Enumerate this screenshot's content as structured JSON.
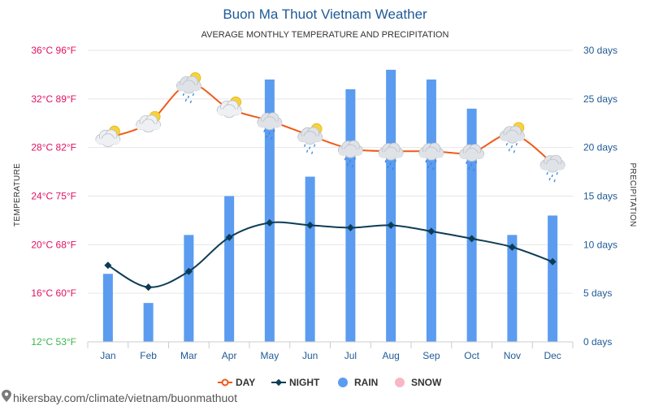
{
  "chart_data": {
    "type": "line+bar",
    "title": "Buon Ma Thuot Vietnam Weather",
    "subtitle": "AVERAGE MONTHLY TEMPERATURE AND PRECIPITATION",
    "categories": [
      "Jan",
      "Feb",
      "Mar",
      "Apr",
      "May",
      "Jun",
      "Jul",
      "Aug",
      "Sep",
      "Oct",
      "Nov",
      "Dec"
    ],
    "series": [
      {
        "name": "DAY",
        "type": "line",
        "axis": "left",
        "color": "#f05a1a",
        "values": [
          28.8,
          30.0,
          33.2,
          31.2,
          30.2,
          29.0,
          27.9,
          27.7,
          27.7,
          27.6,
          29.1,
          26.7
        ]
      },
      {
        "name": "NIGHT",
        "type": "line",
        "axis": "left",
        "color": "#0d3d56",
        "values": [
          18.3,
          16.5,
          17.8,
          20.6,
          21.8,
          21.6,
          21.4,
          21.6,
          21.1,
          20.5,
          19.8,
          18.6
        ]
      },
      {
        "name": "RAIN",
        "type": "bar",
        "axis": "right",
        "color": "#5b9cf0",
        "values": [
          7,
          4,
          11,
          15,
          27,
          17,
          26,
          28,
          27,
          24,
          11,
          13
        ]
      },
      {
        "name": "SNOW",
        "type": "bar",
        "axis": "right",
        "color": "#f7b7c5",
        "values": [
          0,
          0,
          0,
          0,
          0,
          0,
          0,
          0,
          0,
          0,
          0,
          0
        ]
      }
    ],
    "weather_icons": [
      "partly-cloudy-icon",
      "partly-cloudy-icon",
      "cloud-sun-rain-icon",
      "partly-cloudy-icon",
      "cloud-rain-icon",
      "cloud-sun-rain-icon",
      "cloud-rain-icon",
      "cloud-rain-icon",
      "cloud-rain-icon",
      "cloud-rain-icon",
      "cloud-sun-rain-icon",
      "cloud-rain-icon"
    ],
    "left_axis": {
      "label": "TEMPERATURE",
      "range": [
        12,
        36
      ],
      "ticks": [
        {
          "value": 36,
          "label": "36°C 96°F",
          "color": "#e0115f"
        },
        {
          "value": 32,
          "label": "32°C 89°F",
          "color": "#e0115f"
        },
        {
          "value": 28,
          "label": "28°C 82°F",
          "color": "#e0115f"
        },
        {
          "value": 24,
          "label": "24°C 75°F",
          "color": "#e0115f"
        },
        {
          "value": 20,
          "label": "20°C 68°F",
          "color": "#e0115f"
        },
        {
          "value": 16,
          "label": "16°C 60°F",
          "color": "#e0115f"
        },
        {
          "value": 12,
          "label": "12°C 53°F",
          "color": "#3cb44b"
        }
      ]
    },
    "right_axis": {
      "label": "PRECIPITATION",
      "range": [
        0,
        30
      ],
      "ticks": [
        {
          "value": 30,
          "label": "30 days"
        },
        {
          "value": 25,
          "label": "25 days"
        },
        {
          "value": 20,
          "label": "20 days"
        },
        {
          "value": 15,
          "label": "15 days"
        },
        {
          "value": 10,
          "label": "10 days"
        },
        {
          "value": 5,
          "label": "5 days"
        },
        {
          "value": 0,
          "label": "0 days"
        }
      ]
    },
    "grid": true,
    "legend_position": "bottom-center"
  },
  "footer": {
    "text": "hikersbay.com/climate/vietnam/buonmathuot",
    "icon": "map-pin-icon"
  }
}
